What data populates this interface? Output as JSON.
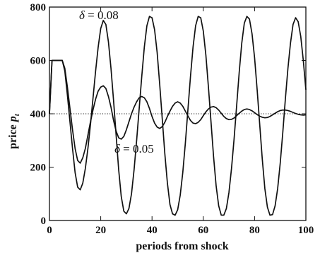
{
  "chart_data": {
    "type": "line",
    "title": "",
    "xlabel": "periods from shock",
    "ylabel_main": "price",
    "ylabel_symbol": "p",
    "ylabel_subscript": "t",
    "xlim": [
      0,
      100
    ],
    "ylim": [
      0,
      800
    ],
    "xticks": [
      0,
      20,
      40,
      60,
      80,
      100
    ],
    "yticks": [
      0,
      200,
      400,
      600,
      800
    ],
    "reference_line": {
      "y": 400,
      "style": "dotted"
    },
    "annotations": [
      {
        "symbol": "δ",
        "text": " = 0.08"
      },
      {
        "symbol": "δ",
        "text": " = 0.05"
      }
    ],
    "series": [
      {
        "key": "delta_0.08",
        "x": [
          0,
          1,
          2,
          3,
          4,
          5,
          6,
          7,
          8,
          9,
          10,
          11,
          12,
          13,
          14,
          15,
          16,
          17,
          18,
          19,
          20,
          21,
          22,
          23,
          24,
          25,
          26,
          27,
          28,
          29,
          30,
          31,
          32,
          33,
          34,
          35,
          36,
          37,
          38,
          39,
          40,
          41,
          42,
          43,
          44,
          45,
          46,
          47,
          48,
          49,
          50,
          51,
          52,
          53,
          54,
          55,
          56,
          57,
          58,
          59,
          60,
          61,
          62,
          63,
          64,
          65,
          66,
          67,
          68,
          69,
          70,
          71,
          72,
          73,
          74,
          75,
          76,
          77,
          78,
          79,
          80,
          81,
          82,
          83,
          84,
          85,
          86,
          87,
          88,
          89,
          90,
          91,
          92,
          93,
          94,
          95,
          96,
          97,
          98,
          99,
          100
        ],
        "y": [
          400,
          600,
          600,
          600,
          600,
          600,
          560,
          470,
          370,
          270,
          180,
          125,
          115,
          140,
          195,
          270,
          360,
          460,
          560,
          650,
          720,
          750,
          735,
          670,
          570,
          450,
          320,
          190,
          90,
          35,
          25,
          45,
          100,
          190,
          300,
          420,
          540,
          650,
          730,
          765,
          760,
          715,
          630,
          510,
          380,
          250,
          140,
          60,
          25,
          20,
          40,
          95,
          180,
          290,
          415,
          540,
          650,
          730,
          765,
          760,
          710,
          620,
          500,
          370,
          240,
          130,
          55,
          20,
          20,
          45,
          105,
          195,
          305,
          430,
          555,
          665,
          740,
          765,
          755,
          700,
          610,
          490,
          360,
          230,
          120,
          50,
          20,
          22,
          55,
          120,
          215,
          330,
          455,
          570,
          665,
          735,
          760,
          745,
          690,
          600,
          490
        ]
      },
      {
        "key": "delta_0.05",
        "x": [
          0,
          1,
          2,
          3,
          4,
          5,
          6,
          7,
          8,
          9,
          10,
          11,
          12,
          13,
          14,
          15,
          16,
          17,
          18,
          19,
          20,
          21,
          22,
          23,
          24,
          25,
          26,
          27,
          28,
          29,
          30,
          31,
          32,
          33,
          34,
          35,
          36,
          37,
          38,
          39,
          40,
          41,
          42,
          43,
          44,
          45,
          46,
          47,
          48,
          49,
          50,
          51,
          52,
          53,
          54,
          55,
          56,
          57,
          58,
          59,
          60,
          61,
          62,
          63,
          64,
          65,
          66,
          67,
          68,
          69,
          70,
          71,
          72,
          73,
          74,
          75,
          76,
          77,
          78,
          79,
          80,
          81,
          82,
          83,
          84,
          85,
          86,
          87,
          88,
          89,
          90,
          91,
          92,
          93,
          94,
          95,
          96,
          97,
          98,
          99,
          100
        ],
        "y": [
          400,
          600,
          600,
          600,
          600,
          600,
          570,
          500,
          420,
          340,
          270,
          225,
          215,
          235,
          270,
          320,
          370,
          415,
          455,
          485,
          500,
          505,
          495,
          465,
          425,
          375,
          335,
          310,
          305,
          315,
          340,
          370,
          400,
          425,
          445,
          460,
          465,
          460,
          445,
          420,
          390,
          365,
          350,
          345,
          352,
          368,
          390,
          410,
          428,
          440,
          445,
          440,
          428,
          410,
          392,
          375,
          365,
          363,
          368,
          378,
          393,
          407,
          418,
          425,
          427,
          423,
          414,
          402,
          390,
          382,
          378,
          379,
          384,
          393,
          402,
          410,
          416,
          418,
          416,
          411,
          404,
          397,
          391,
          387,
          385,
          386,
          390,
          396,
          402,
          408,
          412,
          414,
          414,
          412,
          409,
          405,
          401,
          398,
          396,
          395,
          396
        ]
      }
    ]
  }
}
